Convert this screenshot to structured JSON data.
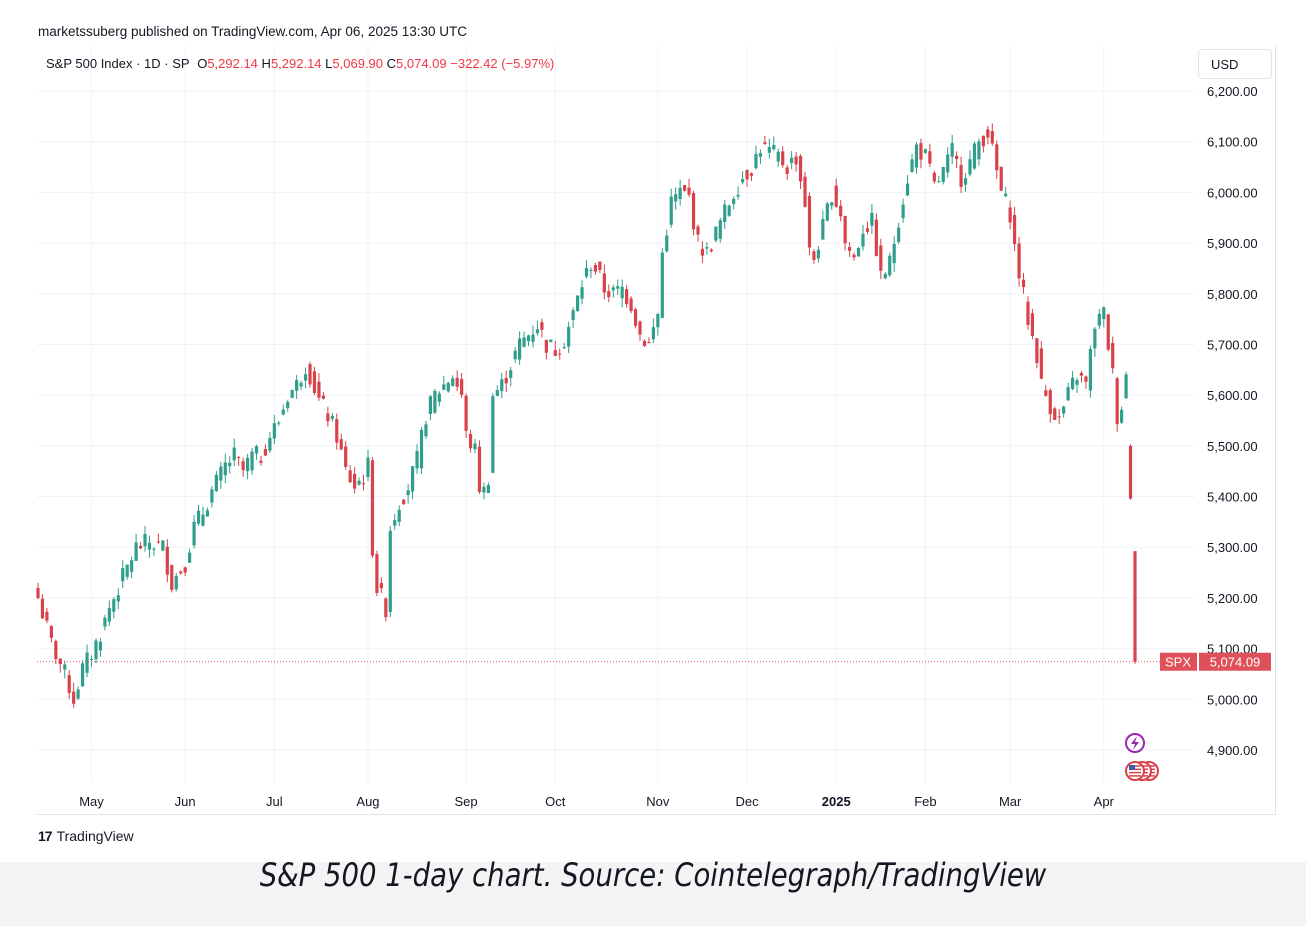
{
  "header": {
    "published": "marketssuberg published on TradingView.com, Apr 06, 2025 13:30 UTC"
  },
  "legend": {
    "symbol": "S&P 500 Index · 1D · SP",
    "o_label": "O",
    "o_value": "5,292.14",
    "h_label": "H",
    "h_value": "5,292.14",
    "l_label": "L",
    "l_value": "5,069.90",
    "c_label": "C",
    "c_value": "5,074.09",
    "change": "−322.42 (−5.97%)"
  },
  "currency_button": "USD",
  "price_tag": {
    "ticker": "SPX",
    "value": "5,074.09"
  },
  "branding": {
    "logo_text": "TradingView",
    "logo_mark": "17"
  },
  "caption": "S&P 500 1-day chart. Source: Cointelegraph/TradingView",
  "colors": {
    "up": "#2f9e8a",
    "down": "#d9414b",
    "grid": "#f0f3fa",
    "last_price": "#e0505a",
    "event_purple": "#9c27b0"
  },
  "icons": [
    "lightning-event-icon",
    "us-flag-event-icon"
  ],
  "chart_data": {
    "type": "candlestick",
    "title": "S&P 500 Index · 1D · SP",
    "ylim": [
      4800,
      6250
    ],
    "yticks": [
      "6,200.00",
      "6,100.00",
      "6,000.00",
      "5,900.00",
      "5,800.00",
      "5,700.00",
      "5,600.00",
      "5,500.00",
      "5,400.00",
      "5,300.00",
      "5,200.00",
      "5,100.00",
      "5,000.00",
      "4,900.00"
    ],
    "ytick_values": [
      6200,
      6100,
      6000,
      5900,
      5800,
      5700,
      5600,
      5500,
      5400,
      5300,
      5200,
      5100,
      5000,
      4900
    ],
    "xticks": [
      {
        "label": "May",
        "index": 12,
        "bold": false
      },
      {
        "label": "Jun",
        "index": 33,
        "bold": false
      },
      {
        "label": "Jul",
        "index": 53,
        "bold": false
      },
      {
        "label": "Aug",
        "index": 74,
        "bold": false
      },
      {
        "label": "Sep",
        "index": 96,
        "bold": false
      },
      {
        "label": "Oct",
        "index": 116,
        "bold": false
      },
      {
        "label": "Nov",
        "index": 139,
        "bold": false
      },
      {
        "label": "Dec",
        "index": 159,
        "bold": false
      },
      {
        "label": "2025",
        "index": 179,
        "bold": true
      },
      {
        "label": "Feb",
        "index": 199,
        "bold": false
      },
      {
        "label": "Mar",
        "index": 218,
        "bold": false
      },
      {
        "label": "Apr",
        "index": 239,
        "bold": false
      }
    ],
    "last_price": 5074.09,
    "close_path": [
      [
        0,
        5200
      ],
      [
        3,
        5110
      ],
      [
        6,
        5050
      ],
      [
        8,
        5000
      ],
      [
        10,
        5060
      ],
      [
        12,
        5090
      ],
      [
        14,
        5130
      ],
      [
        16,
        5180
      ],
      [
        19,
        5240
      ],
      [
        22,
        5300
      ],
      [
        25,
        5310
      ],
      [
        28,
        5300
      ],
      [
        30,
        5230
      ],
      [
        33,
        5270
      ],
      [
        35,
        5340
      ],
      [
        37,
        5370
      ],
      [
        39,
        5410
      ],
      [
        42,
        5460
      ],
      [
        44,
        5480
      ],
      [
        46,
        5450
      ],
      [
        48,
        5480
      ],
      [
        50,
        5480
      ],
      [
        52,
        5520
      ],
      [
        54,
        5550
      ],
      [
        56,
        5600
      ],
      [
        58,
        5620
      ],
      [
        60,
        5660
      ],
      [
        61,
        5640
      ],
      [
        63,
        5590
      ],
      [
        65,
        5560
      ],
      [
        67,
        5520
      ],
      [
        69,
        5450
      ],
      [
        71,
        5420
      ],
      [
        73,
        5440
      ],
      [
        74,
        5460
      ],
      [
        75,
        5300
      ],
      [
        76,
        5220
      ],
      [
        78,
        5180
      ],
      [
        79,
        5340
      ],
      [
        81,
        5390
      ],
      [
        83,
        5420
      ],
      [
        85,
        5470
      ],
      [
        87,
        5560
      ],
      [
        89,
        5600
      ],
      [
        91,
        5620
      ],
      [
        93,
        5640
      ],
      [
        95,
        5600
      ],
      [
        96,
        5520
      ],
      [
        98,
        5490
      ],
      [
        99,
        5420
      ],
      [
        100,
        5410
      ],
      [
        101,
        5440
      ],
      [
        102,
        5600
      ],
      [
        104,
        5620
      ],
      [
        106,
        5660
      ],
      [
        108,
        5700
      ],
      [
        110,
        5720
      ],
      [
        112,
        5740
      ],
      [
        114,
        5700
      ],
      [
        116,
        5690
      ],
      [
        118,
        5710
      ],
      [
        120,
        5760
      ],
      [
        122,
        5820
      ],
      [
        124,
        5860
      ],
      [
        125,
        5850
      ],
      [
        127,
        5810
      ],
      [
        129,
        5800
      ],
      [
        131,
        5810
      ],
      [
        133,
        5780
      ],
      [
        135,
        5720
      ],
      [
        137,
        5700
      ],
      [
        139,
        5760
      ],
      [
        140,
        5880
      ],
      [
        142,
        5980
      ],
      [
        144,
        6000
      ],
      [
        146,
        5990
      ],
      [
        148,
        5900
      ],
      [
        150,
        5880
      ],
      [
        152,
        5920
      ],
      [
        154,
        5960
      ],
      [
        156,
        6000
      ],
      [
        158,
        6030
      ],
      [
        160,
        6050
      ],
      [
        162,
        6090
      ],
      [
        164,
        6080
      ],
      [
        166,
        6070
      ],
      [
        168,
        6050
      ],
      [
        170,
        6070
      ],
      [
        172,
        5980
      ],
      [
        173,
        5880
      ],
      [
        174,
        5870
      ],
      [
        176,
        5930
      ],
      [
        178,
        6000
      ],
      [
        180,
        5960
      ],
      [
        181,
        5900
      ],
      [
        183,
        5870
      ],
      [
        185,
        5930
      ],
      [
        187,
        5940
      ],
      [
        188,
        5890
      ],
      [
        189,
        5830
      ],
      [
        191,
        5860
      ],
      [
        193,
        5950
      ],
      [
        195,
        6030
      ],
      [
        197,
        6090
      ],
      [
        199,
        6070
      ],
      [
        201,
        6010
      ],
      [
        203,
        6040
      ],
      [
        205,
        6080
      ],
      [
        207,
        6030
      ],
      [
        209,
        6060
      ],
      [
        211,
        6100
      ],
      [
        213,
        6120
      ],
      [
        214,
        6080
      ],
      [
        216,
        6000
      ],
      [
        218,
        5960
      ],
      [
        219,
        5890
      ],
      [
        220,
        5840
      ],
      [
        222,
        5750
      ],
      [
        224,
        5680
      ],
      [
        225,
        5620
      ],
      [
        227,
        5580
      ],
      [
        229,
        5550
      ],
      [
        231,
        5600
      ],
      [
        233,
        5640
      ],
      [
        235,
        5620
      ],
      [
        237,
        5740
      ],
      [
        239,
        5760
      ],
      [
        240,
        5700
      ],
      [
        241,
        5640
      ],
      [
        242,
        5560
      ],
      [
        243,
        5580
      ],
      [
        244,
        5640
      ],
      [
        245,
        5410
      ],
      [
        246,
        5074.09
      ]
    ]
  }
}
